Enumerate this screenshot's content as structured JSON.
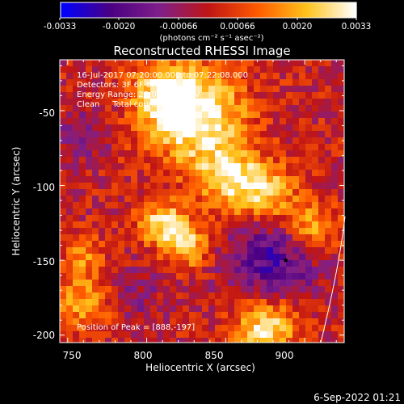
{
  "colorbar": {
    "tick_labels": [
      "-0.0033",
      "-0.0020",
      "-0.00066",
      "0.00066",
      "0.0020",
      "0.0033"
    ],
    "units": "(photons cm⁻² s⁻¹ asec⁻²)"
  },
  "chart_data": {
    "type": "heatmap",
    "title": "Reconstructed RHESSI Image",
    "xlabel": "Heliocentric X (arcsec)",
    "ylabel": "Heliocentric Y (arcsec)",
    "xlim": [
      745,
      925
    ],
    "ylim": [
      -205,
      -16
    ],
    "x_ticks": [
      750,
      800,
      850,
      900
    ],
    "y_ticks": [
      -50,
      -100,
      -150,
      -200
    ],
    "color_range": [
      -0.0033,
      0.0033
    ],
    "colormap": [
      "#0000ff",
      "#4b0082",
      "#7f1f8a",
      "#c01515",
      "#ff5a00",
      "#ffc21a",
      "#ffffff"
    ],
    "annotations": [
      "16-Jul-2017 07:20:00.000 to 07:22:08.000",
      "Detectors: 3F 6F 8F, Att 0",
      "Energy Range: 25.0 - 50.0 keV",
      "Clean     Total counts: 1.10E+04"
    ],
    "peak_label": "Position of Peak = [888,-197]",
    "peak_position": [
      888,
      -197
    ],
    "emission_regions": [
      {
        "x": 832,
        "y": -55,
        "sigma": 22,
        "amp": 0.0033
      },
      {
        "x": 812,
        "y": -38,
        "sigma": 14,
        "amp": 0.0026
      },
      {
        "x": 850,
        "y": -95,
        "sigma": 14,
        "amp": 0.0024
      },
      {
        "x": 810,
        "y": -125,
        "sigma": 10,
        "amp": 0.0028
      },
      {
        "x": 825,
        "y": -140,
        "sigma": 10,
        "amp": 0.0026
      },
      {
        "x": 875,
        "y": -105,
        "sigma": 14,
        "amp": 0.0025
      },
      {
        "x": 905,
        "y": -128,
        "sigma": 12,
        "amp": 0.0022
      },
      {
        "x": 875,
        "y": -195,
        "sigma": 14,
        "amp": 0.003
      },
      {
        "x": 760,
        "y": -180,
        "sigma": 14,
        "amp": 0.0018
      },
      {
        "x": 760,
        "y": -148,
        "sigma": 10,
        "amp": 0.0014
      }
    ],
    "negative_regions": [
      {
        "x": 880,
        "y": -150,
        "sigma": 20,
        "amp": -0.0022
      },
      {
        "x": 760,
        "y": -65,
        "sigma": 12,
        "amp": -0.001
      },
      {
        "x": 790,
        "y": -175,
        "sigma": 14,
        "amp": -0.0009
      }
    ]
  },
  "timestamp": "6-Sep-2022 01:21"
}
